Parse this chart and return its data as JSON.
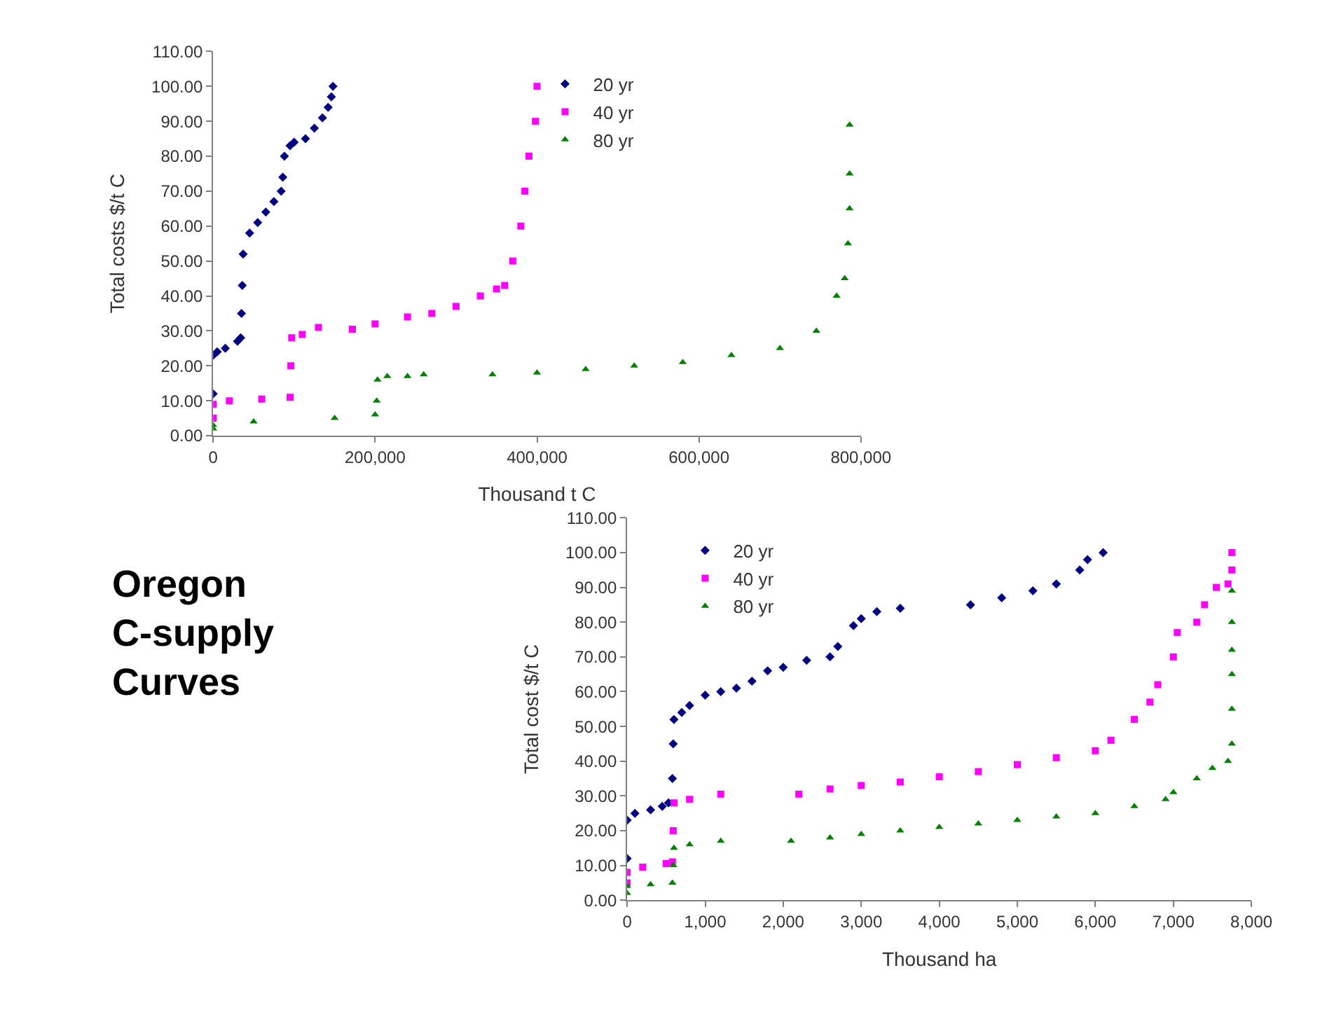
{
  "chart_data": [
    {
      "type": "scatter",
      "xlabel": "Thousand t C",
      "ylabel": "Total costs $/t C",
      "legend": "top",
      "xlim": [
        0,
        800000
      ],
      "xticks": [
        0,
        {
          "value": 200000,
          "label": "200,000"
        },
        {
          "value": 400000,
          "label": "400,000"
        },
        {
          "value": 600000,
          "label": "600,000"
        },
        {
          "value": 800000,
          "label": "800,000"
        }
      ],
      "ylim": [
        0,
        110
      ],
      "yticks": [
        {
          "value": 0,
          "label": "0.00"
        },
        {
          "value": 10,
          "label": "10.00"
        },
        {
          "value": 20,
          "label": "20.00"
        },
        {
          "value": 30,
          "label": "30.00"
        },
        {
          "value": 40,
          "label": "40.00"
        },
        {
          "value": 50,
          "label": "50.00"
        },
        {
          "value": 60,
          "label": "60.00"
        },
        {
          "value": 70,
          "label": "70.00"
        },
        {
          "value": 80,
          "label": "80.00"
        },
        {
          "value": 90,
          "label": "90.00"
        },
        {
          "value": 100,
          "label": "100.00"
        },
        {
          "value": 110,
          "label": "110.00"
        }
      ],
      "series": [
        {
          "name": "20 yr",
          "color": "#000080",
          "marker": "diamond",
          "x": [
            0,
            0,
            5000,
            15000,
            30000,
            34000,
            35000,
            36000,
            37000,
            45000,
            55000,
            65000,
            75000,
            84000,
            86000,
            88000,
            95000,
            100000,
            114000,
            125000,
            135000,
            142000,
            146000,
            148000
          ],
          "values": [
            12,
            23,
            24,
            25,
            27,
            28,
            35,
            43,
            52,
            58,
            61,
            64,
            67,
            70,
            74,
            80,
            83,
            84,
            85,
            88,
            91,
            94,
            97,
            100
          ]
        },
        {
          "name": "40 yr",
          "color": "#ff00ff",
          "marker": "square",
          "x": [
            0,
            0,
            20000,
            60000,
            95000,
            96000,
            97000,
            110000,
            130000,
            172000,
            200000,
            240000,
            270000,
            300000,
            330000,
            350000,
            360000,
            370000,
            380000,
            385000,
            390000,
            398000,
            400000
          ],
          "values": [
            5,
            9,
            10,
            10.5,
            11,
            20,
            28,
            29,
            31,
            30.5,
            32,
            34,
            35,
            37,
            40,
            42,
            43,
            50,
            60,
            70,
            80,
            90,
            100
          ]
        },
        {
          "name": "80 yr",
          "color": "#008000",
          "marker": "triangle",
          "x": [
            0,
            0,
            50000,
            150000,
            200000,
            202000,
            203000,
            215000,
            240000,
            260000,
            345000,
            400000,
            460000,
            520000,
            580000,
            640000,
            700000,
            745000,
            770000,
            780000,
            784000,
            786000,
            786000,
            786000
          ],
          "values": [
            2,
            3,
            4,
            5,
            6,
            10,
            16,
            17,
            17,
            17.5,
            17.5,
            18,
            19,
            20,
            21,
            23,
            25,
            30,
            40,
            45,
            55,
            65,
            75,
            89
          ]
        }
      ]
    },
    {
      "type": "scatter",
      "xlabel": "Thousand ha",
      "ylabel": "Total cost $/t C",
      "legend": "top left",
      "xlim": [
        0,
        8000
      ],
      "xticks": [
        0,
        {
          "value": 1000,
          "label": "1,000"
        },
        {
          "value": 2000,
          "label": "2,000"
        },
        {
          "value": 3000,
          "label": "3,000"
        },
        {
          "value": 4000,
          "label": "4,000"
        },
        {
          "value": 5000,
          "label": "5,000"
        },
        {
          "value": 6000,
          "label": "6,000"
        },
        {
          "value": 7000,
          "label": "7,000"
        },
        {
          "value": 8000,
          "label": "8,000"
        }
      ],
      "ylim": [
        0,
        110
      ],
      "yticks": [
        {
          "value": 0,
          "label": "0.00"
        },
        {
          "value": 10,
          "label": "10.00"
        },
        {
          "value": 20,
          "label": "20.00"
        },
        {
          "value": 30,
          "label": "30.00"
        },
        {
          "value": 40,
          "label": "40.00"
        },
        {
          "value": 50,
          "label": "50.00"
        },
        {
          "value": 60,
          "label": "60.00"
        },
        {
          "value": 70,
          "label": "70.00"
        },
        {
          "value": 80,
          "label": "80.00"
        },
        {
          "value": 90,
          "label": "90.00"
        },
        {
          "value": 100,
          "label": "100.00"
        },
        {
          "value": 110,
          "label": "110.00"
        }
      ],
      "series": [
        {
          "name": "20 yr",
          "color": "#000080",
          "marker": "diamond",
          "x": [
            0,
            0,
            100,
            300,
            450,
            530,
            580,
            590,
            600,
            700,
            800,
            1000,
            1200,
            1400,
            1600,
            1800,
            2000,
            2300,
            2600,
            2700,
            2900,
            3000,
            3200,
            3500,
            4400,
            4800,
            5200,
            5500,
            5800,
            5900,
            6100
          ],
          "values": [
            12,
            23,
            25,
            26,
            27,
            28,
            35,
            45,
            52,
            54,
            56,
            59,
            60,
            61,
            63,
            66,
            67,
            69,
            70,
            73,
            79,
            81,
            83,
            84,
            85,
            87,
            89,
            91,
            95,
            98,
            100
          ]
        },
        {
          "name": "40 yr",
          "color": "#ff00ff",
          "marker": "square",
          "x": [
            0,
            0,
            200,
            500,
            580,
            590,
            600,
            800,
            1200,
            2200,
            2600,
            3000,
            3500,
            4000,
            4500,
            5000,
            5500,
            6000,
            6200,
            6500,
            6700,
            6800,
            7000,
            7050,
            7300,
            7400,
            7550,
            7700,
            7750,
            7750
          ],
          "values": [
            5,
            8,
            9.5,
            10.5,
            11,
            20,
            28,
            29,
            30.5,
            30.5,
            32,
            33,
            34,
            35.5,
            37,
            39,
            41,
            43,
            46,
            52,
            57,
            62,
            70,
            77,
            80,
            85,
            90,
            91,
            95,
            100
          ]
        },
        {
          "name": "80 yr",
          "color": "#008000",
          "marker": "triangle",
          "x": [
            0,
            0,
            300,
            580,
            590,
            600,
            800,
            1200,
            2100,
            2600,
            3000,
            3500,
            4000,
            4500,
            5000,
            5500,
            6000,
            6500,
            6900,
            7000,
            7300,
            7500,
            7700,
            7750,
            7750,
            7750,
            7750,
            7750,
            7750
          ],
          "values": [
            2,
            4,
            4.5,
            5,
            10,
            15,
            16,
            17,
            17,
            18,
            19,
            20,
            21,
            22,
            23,
            24,
            25,
            27,
            29,
            31,
            35,
            38,
            40,
            45,
            55,
            65,
            72,
            80,
            89
          ]
        }
      ]
    },
    {
      "type": "other",
      "title": "Oregon C-supply Curves"
    }
  ]
}
